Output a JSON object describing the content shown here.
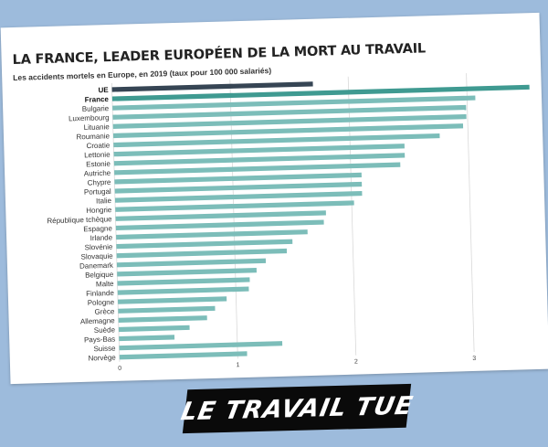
{
  "chart_data": {
    "type": "bar",
    "orientation": "horizontal",
    "title": "LA FRANCE, LEADER EUROPÉEN DE LA MORT AU TRAVAIL",
    "subtitle": "Les accidents mortels en Europe, en 2019 (taux pour 100 000 salariés)",
    "xlabel": "",
    "ylabel": "",
    "xlim": [
      0,
      3.6
    ],
    "xticks": [
      0,
      1,
      2,
      3
    ],
    "grid": true,
    "categories": [
      "UE",
      "France",
      "Bulgarie",
      "Luxembourg",
      "Lituanie",
      "Roumanie",
      "Croatie",
      "Lettonie",
      "Estonie",
      "Autriche",
      "Chypre",
      "Portugal",
      "Italie",
      "Hongrie",
      "République tchèque",
      "Espagne",
      "Irlande",
      "Slovénie",
      "Slovaquie",
      "Danemark",
      "Belgique",
      "Malte",
      "Finlande",
      "Pologne",
      "Grèce",
      "Allemagne",
      "Suède",
      "Pays-Bas",
      "Suisse",
      "Norvège"
    ],
    "values": [
      1.7,
      3.53,
      3.07,
      2.99,
      2.99,
      2.96,
      2.76,
      2.46,
      2.46,
      2.42,
      2.09,
      2.09,
      2.09,
      2.02,
      1.78,
      1.76,
      1.62,
      1.49,
      1.44,
      1.26,
      1.18,
      1.12,
      1.11,
      0.92,
      0.82,
      0.75,
      0.6,
      0.47,
      1.38,
      1.08
    ],
    "highlighted": [
      "UE",
      "France"
    ],
    "colors": {
      "default_bar": "#7cbdb9",
      "ue_bar": "#364554",
      "france_bar": "#3f9a91",
      "grid": "#d9d9d9"
    }
  },
  "banner": {
    "text": "LE TRAVAIL TUE"
  }
}
